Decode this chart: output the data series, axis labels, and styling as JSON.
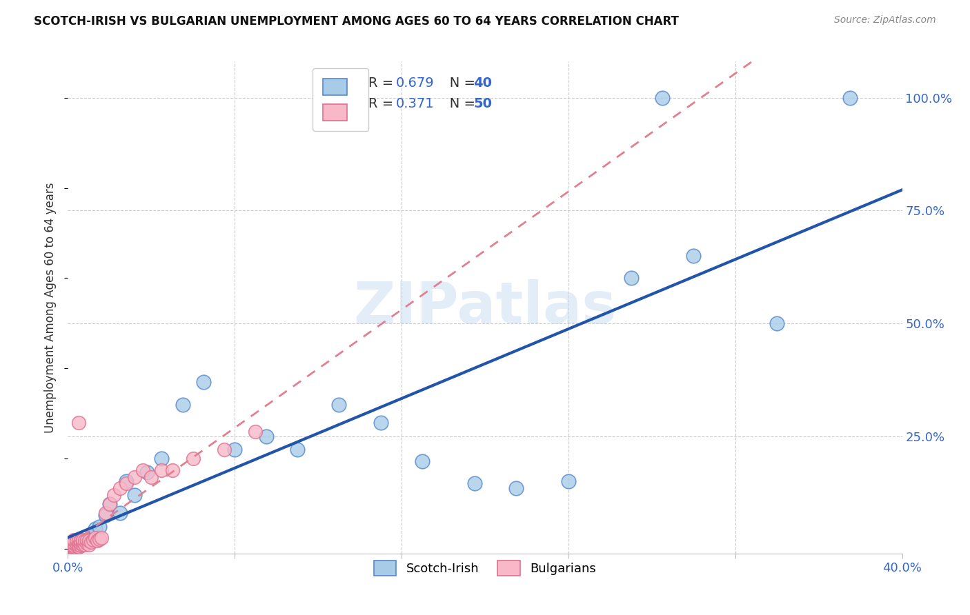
{
  "title": "SCOTCH-IRISH VS BULGARIAN UNEMPLOYMENT AMONG AGES 60 TO 64 YEARS CORRELATION CHART",
  "source": "Source: ZipAtlas.com",
  "ylabel": "Unemployment Among Ages 60 to 64 years",
  "xlim": [
    0.0,
    0.4
  ],
  "ylim": [
    -0.01,
    1.08
  ],
  "xticks": [
    0.0,
    0.08,
    0.16,
    0.24,
    0.32,
    0.4
  ],
  "xticklabels": [
    "0.0%",
    "",
    "",
    "",
    "",
    "40.0%"
  ],
  "yticks_right": [
    0.25,
    0.5,
    0.75,
    1.0
  ],
  "ytick_right_labels": [
    "25.0%",
    "50.0%",
    "75.0%",
    "100.0%"
  ],
  "scotch_irish_face_color": "#A8CCE8",
  "scotch_irish_edge_color": "#5588CC",
  "bulgarian_face_color": "#F8B8C8",
  "bulgarian_edge_color": "#E07090",
  "scotch_irish_line_color": "#2255AA",
  "bulgarian_line_color": "#E08090",
  "background_color": "#FFFFFF",
  "grid_color": "#CCCCCC",
  "tick_color": "#3366CC",
  "label_color": "#333333",
  "title_color": "#111111",
  "source_color": "#888888",
  "watermark_color": "#C8DCF0",
  "scotch_irish_x": [
    0.001,
    0.002,
    0.002,
    0.003,
    0.003,
    0.004,
    0.004,
    0.005,
    0.005,
    0.006,
    0.007,
    0.008,
    0.009,
    0.01,
    0.012,
    0.013,
    0.015,
    0.018,
    0.02,
    0.025,
    0.028,
    0.032,
    0.038,
    0.045,
    0.055,
    0.065,
    0.08,
    0.095,
    0.11,
    0.13,
    0.15,
    0.17,
    0.195,
    0.215,
    0.24,
    0.27,
    0.3,
    0.34,
    0.285,
    0.375
  ],
  "scotch_irish_y": [
    0.005,
    0.008,
    0.01,
    0.005,
    0.012,
    0.008,
    0.015,
    0.01,
    0.02,
    0.008,
    0.015,
    0.012,
    0.018,
    0.02,
    0.03,
    0.045,
    0.05,
    0.075,
    0.1,
    0.08,
    0.15,
    0.12,
    0.17,
    0.2,
    0.32,
    0.37,
    0.22,
    0.25,
    0.22,
    0.32,
    0.28,
    0.195,
    0.145,
    0.135,
    0.15,
    0.6,
    0.65,
    0.5,
    1.0,
    1.0
  ],
  "bulgarian_x": [
    0.001,
    0.001,
    0.001,
    0.002,
    0.002,
    0.002,
    0.002,
    0.003,
    0.003,
    0.003,
    0.003,
    0.004,
    0.004,
    0.004,
    0.005,
    0.005,
    0.005,
    0.005,
    0.006,
    0.006,
    0.006,
    0.007,
    0.007,
    0.007,
    0.008,
    0.008,
    0.009,
    0.009,
    0.01,
    0.01,
    0.011,
    0.012,
    0.013,
    0.014,
    0.015,
    0.016,
    0.018,
    0.02,
    0.022,
    0.025,
    0.028,
    0.032,
    0.036,
    0.04,
    0.045,
    0.05,
    0.06,
    0.075,
    0.09,
    0.005
  ],
  "bulgarian_y": [
    0.005,
    0.008,
    0.01,
    0.005,
    0.008,
    0.01,
    0.015,
    0.005,
    0.008,
    0.012,
    0.02,
    0.008,
    0.012,
    0.018,
    0.005,
    0.01,
    0.015,
    0.02,
    0.008,
    0.012,
    0.018,
    0.01,
    0.015,
    0.02,
    0.01,
    0.018,
    0.012,
    0.02,
    0.01,
    0.018,
    0.015,
    0.02,
    0.025,
    0.018,
    0.022,
    0.025,
    0.08,
    0.1,
    0.12,
    0.135,
    0.145,
    0.16,
    0.175,
    0.16,
    0.175,
    0.175,
    0.2,
    0.22,
    0.26,
    0.28
  ]
}
